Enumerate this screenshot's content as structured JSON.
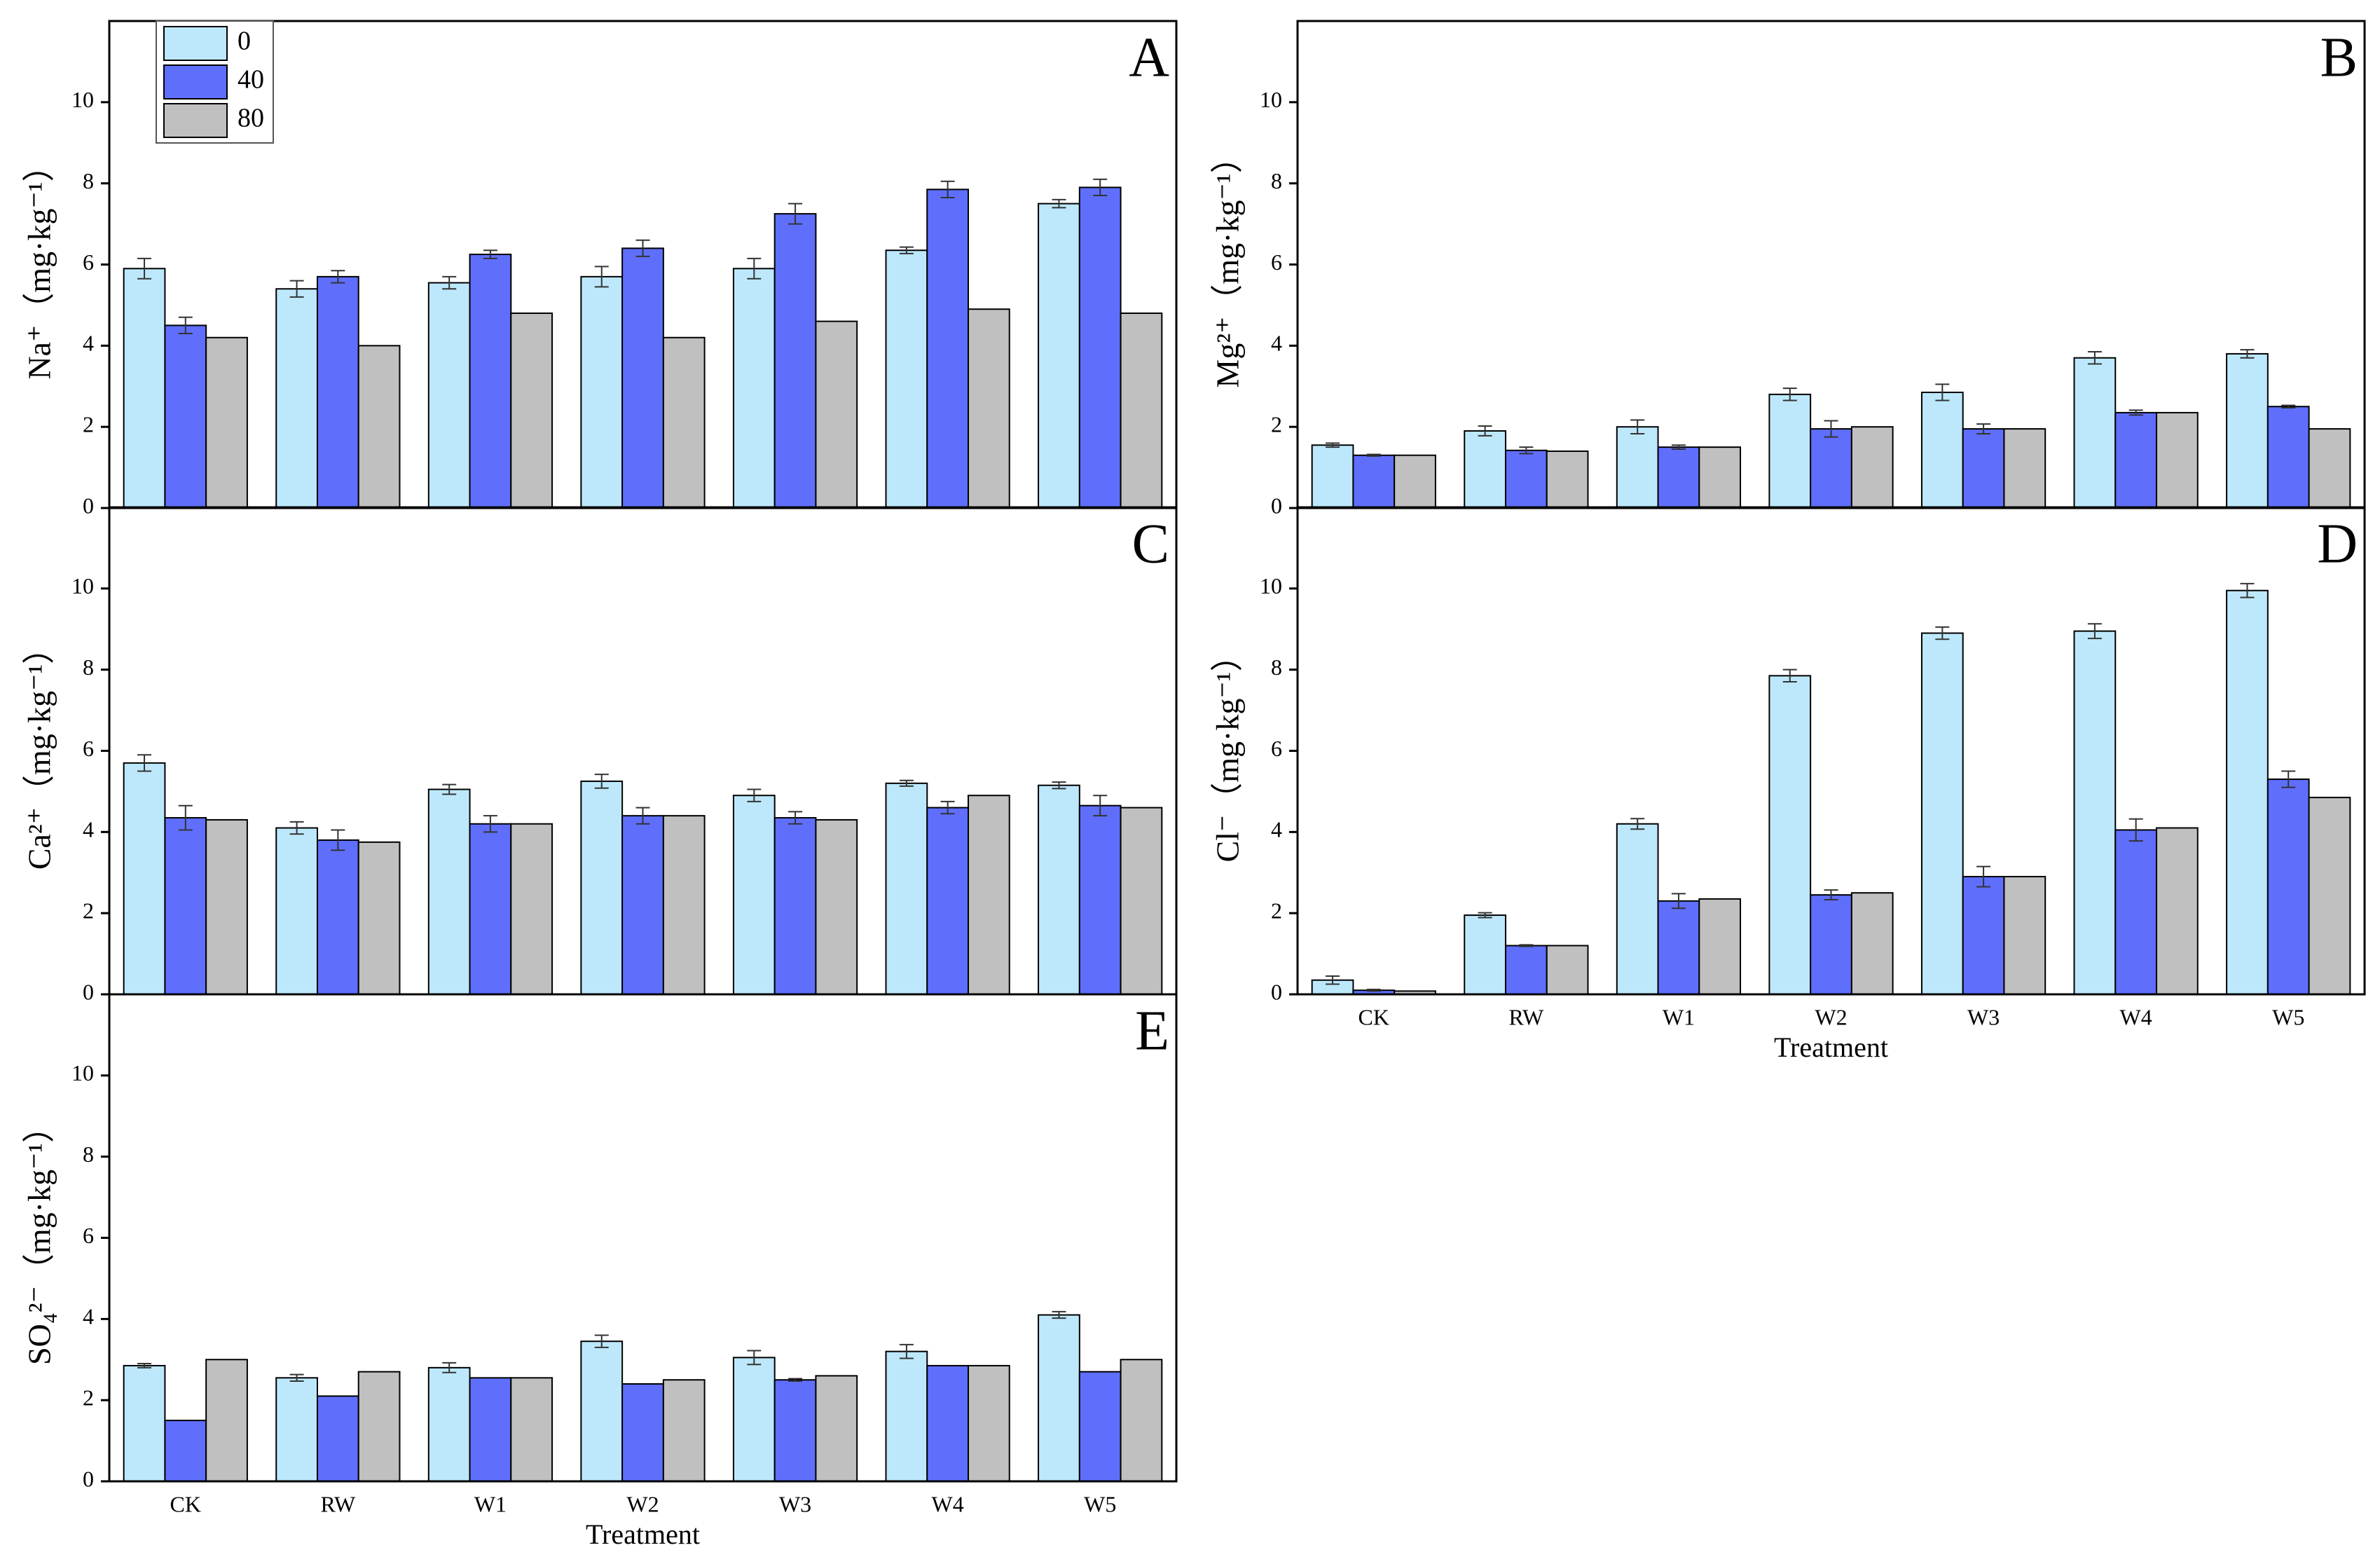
{
  "chart_data": [
    {
      "type": "bar",
      "panel": "A",
      "ylabel": "Na⁺（mg·kg⁻¹）",
      "legend": "upper left",
      "categories": [
        null,
        null,
        null,
        null,
        null,
        null,
        null
      ],
      "ylim": [
        0,
        12
      ],
      "yticks": [
        0,
        2,
        4,
        6,
        8,
        10
      ],
      "series": [
        {
          "name": "0",
          "color": "#bde8fb",
          "values": [
            5.9,
            5.4,
            5.55,
            5.7,
            5.9,
            6.35,
            7.5
          ],
          "errors": [
            0.25,
            0.2,
            0.15,
            0.25,
            0.25,
            0.08,
            0.1
          ]
        },
        {
          "name": "40",
          "color": "#5f6ffc",
          "values": [
            4.5,
            5.7,
            6.25,
            6.4,
            7.25,
            7.85,
            7.9
          ],
          "errors": [
            0.2,
            0.15,
            0.1,
            0.2,
            0.25,
            0.2,
            0.2
          ]
        },
        {
          "name": "80",
          "color": "#c0c0c0",
          "values": [
            4.2,
            4.0,
            4.8,
            4.2,
            4.6,
            4.9,
            4.8
          ]
        }
      ]
    },
    {
      "type": "bar",
      "panel": "B",
      "ylabel": "Mg²⁺（mg·kg⁻¹）",
      "categories": [
        null,
        null,
        null,
        null,
        null,
        null,
        null
      ],
      "ylim": [
        0,
        12
      ],
      "yticks": [
        0,
        2,
        4,
        6,
        8,
        10
      ],
      "series": [
        {
          "color": "#bde8fb",
          "values": [
            1.55,
            1.9,
            2.0,
            2.8,
            2.85,
            3.7,
            3.8
          ],
          "errors": [
            0.05,
            0.12,
            0.17,
            0.15,
            0.2,
            0.15,
            0.1
          ]
        },
        {
          "color": "#5f6ffc",
          "values": [
            1.3,
            1.42,
            1.5,
            1.95,
            1.95,
            2.35,
            2.5
          ],
          "errors": [
            0.02,
            0.08,
            0.05,
            0.2,
            0.12,
            0.06,
            0.03
          ]
        },
        {
          "color": "#c0c0c0",
          "values": [
            1.3,
            1.4,
            1.5,
            2.0,
            1.95,
            2.35,
            1.95
          ]
        }
      ]
    },
    {
      "type": "bar",
      "panel": "C",
      "ylabel": "Ca²⁺（mg·kg⁻¹）",
      "categories": [
        null,
        null,
        null,
        null,
        null,
        null,
        null
      ],
      "ylim": [
        0,
        12
      ],
      "yticks": [
        0,
        2,
        4,
        6,
        8,
        10
      ],
      "series": [
        {
          "color": "#bde8fb",
          "values": [
            5.7,
            4.1,
            5.05,
            5.25,
            4.9,
            5.2,
            5.15
          ],
          "errors": [
            0.2,
            0.15,
            0.12,
            0.17,
            0.15,
            0.07,
            0.08
          ]
        },
        {
          "color": "#5f6ffc",
          "values": [
            4.35,
            3.8,
            4.2,
            4.4,
            4.35,
            4.6,
            4.65
          ],
          "errors": [
            0.3,
            0.25,
            0.2,
            0.2,
            0.15,
            0.15,
            0.25
          ]
        },
        {
          "color": "#c0c0c0",
          "values": [
            4.3,
            3.75,
            4.2,
            4.4,
            4.3,
            4.9,
            4.6
          ]
        }
      ]
    },
    {
      "type": "bar",
      "panel": "D",
      "ylabel": "Cl⁻（mg·kg⁻¹）",
      "xlabel": "Treatment",
      "categories": [
        "CK",
        "RW",
        "W1",
        "W2",
        "W3",
        "W4",
        "W5"
      ],
      "ylim": [
        0,
        12
      ],
      "yticks": [
        0,
        2,
        4,
        6,
        8,
        10
      ],
      "series": [
        {
          "color": "#bde8fb",
          "values": [
            0.35,
            1.95,
            4.2,
            7.85,
            8.9,
            8.95,
            9.95
          ],
          "errors": [
            0.1,
            0.06,
            0.13,
            0.15,
            0.15,
            0.18,
            0.17
          ]
        },
        {
          "color": "#5f6ffc",
          "values": [
            0.1,
            1.2,
            2.3,
            2.45,
            2.9,
            4.05,
            5.3
          ],
          "errors": [
            0.02,
            0.02,
            0.18,
            0.12,
            0.25,
            0.27,
            0.2
          ]
        },
        {
          "color": "#c0c0c0",
          "values": [
            0.08,
            1.2,
            2.35,
            2.5,
            2.9,
            4.1,
            4.85
          ]
        }
      ]
    },
    {
      "type": "bar",
      "panel": "E",
      "ylabel": "SO₄²⁻（mg·kg⁻¹）",
      "xlabel": "Treatment",
      "categories": [
        "CK",
        "RW",
        "W1",
        "W2",
        "W3",
        "W4",
        "W5"
      ],
      "ylim": [
        0,
        12
      ],
      "yticks": [
        0,
        2,
        4,
        6,
        8,
        10
      ],
      "series": [
        {
          "color": "#bde8fb",
          "values": [
            2.85,
            2.55,
            2.8,
            3.45,
            3.05,
            3.2,
            4.1
          ],
          "errors": [
            0.05,
            0.08,
            0.12,
            0.15,
            0.17,
            0.17,
            0.08
          ]
        },
        {
          "color": "#5f6ffc",
          "values": [
            1.5,
            2.1,
            2.55,
            2.4,
            2.5,
            2.85,
            2.7
          ],
          "errors": [
            null,
            null,
            null,
            null,
            0.03,
            null,
            null
          ]
        },
        {
          "color": "#c0c0c0",
          "values": [
            3.0,
            2.7,
            2.55,
            2.5,
            2.6,
            2.85,
            3.0
          ]
        }
      ]
    }
  ]
}
